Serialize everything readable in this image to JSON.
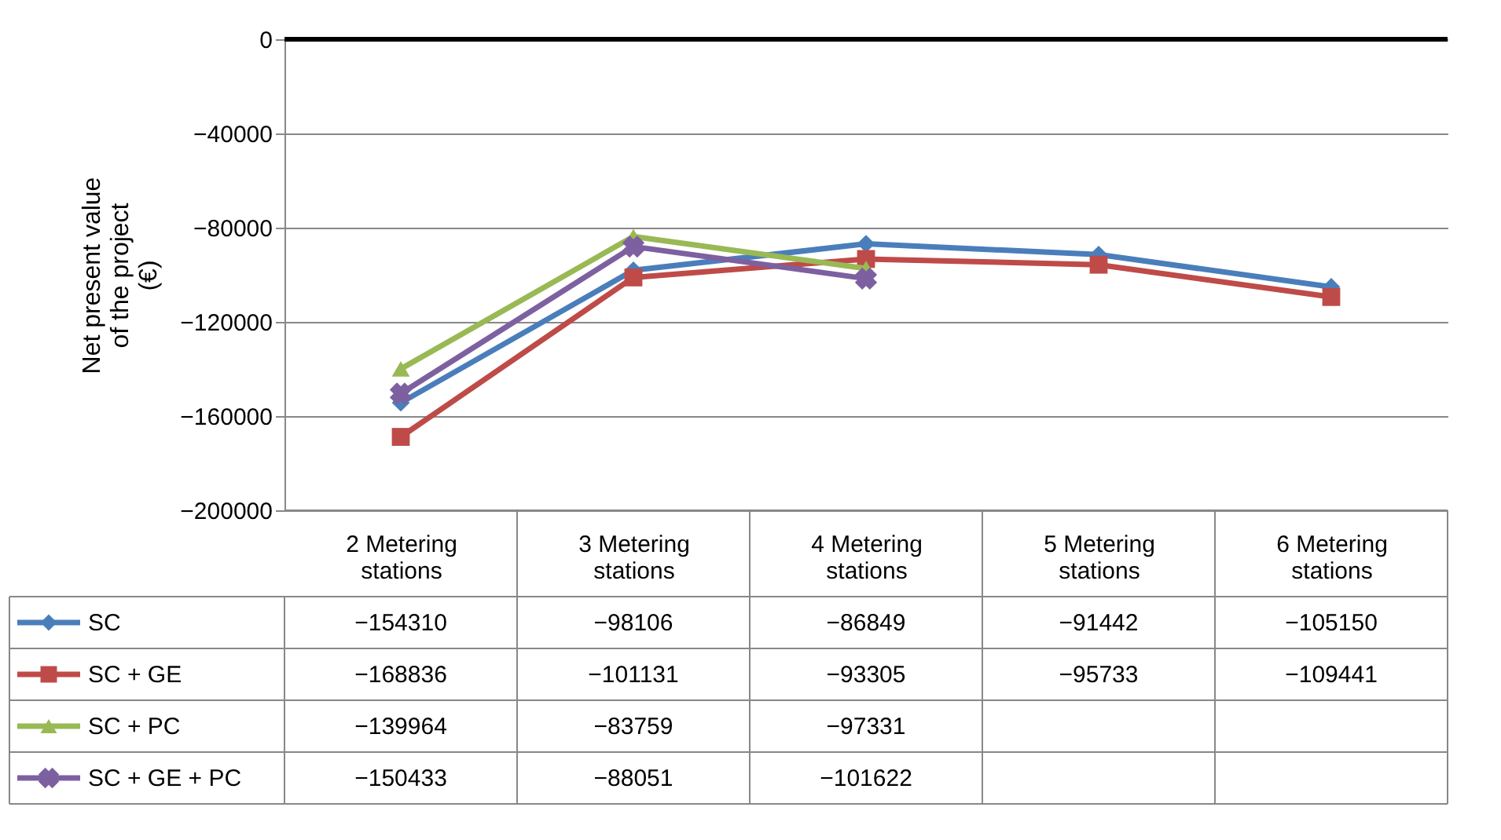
{
  "chart_data": {
    "type": "line",
    "ylabel": "Net present value of the project (€)",
    "categories": [
      "2 Metering stations",
      "3 Metering stations",
      "4 Metering stations",
      "5 Metering stations",
      "6 Metering stations"
    ],
    "ylim": [
      -200000,
      0
    ],
    "yticks": [
      -200000,
      -160000,
      -120000,
      -80000,
      -40000,
      0
    ],
    "grid": "y",
    "legend": "bottom left",
    "data_labels": true,
    "series": [
      {
        "name": "SC",
        "color": "#4a7ebb",
        "marker": "diamond",
        "values": [
          -154310,
          -98106,
          -86849,
          -91442,
          -105150
        ]
      },
      {
        "name": "SC + GE",
        "color": "#be4b48",
        "marker": "square",
        "values": [
          -168836,
          -101131,
          -93305,
          -95733,
          -109441
        ]
      },
      {
        "name": "SC + PC",
        "color": "#98b954",
        "marker": "triangle",
        "values": [
          -139964,
          -83759,
          -97331,
          null,
          null
        ]
      },
      {
        "name": "SC + GE + PC",
        "color": "#7d60a0",
        "marker": "cross",
        "values": [
          -150433,
          -88051,
          -101622,
          null,
          null
        ]
      }
    ]
  }
}
